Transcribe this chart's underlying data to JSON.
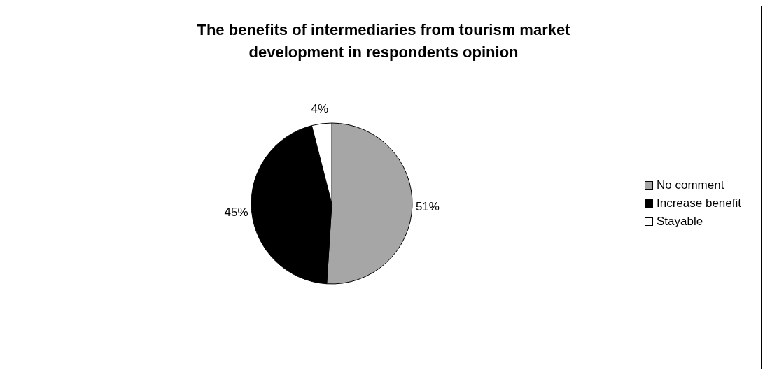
{
  "chart_data": {
    "type": "pie",
    "title": "The benefits of intermediaries from tourism market development in respondents opinion",
    "categories": [
      "No comment",
      "Increase benefit",
      "Stayable"
    ],
    "values": [
      51,
      45,
      4
    ],
    "colors": [
      "#a6a6a6",
      "#000000",
      "#ffffff"
    ],
    "value_labels": [
      "51%",
      "45%",
      "4%"
    ],
    "legend": "right"
  }
}
